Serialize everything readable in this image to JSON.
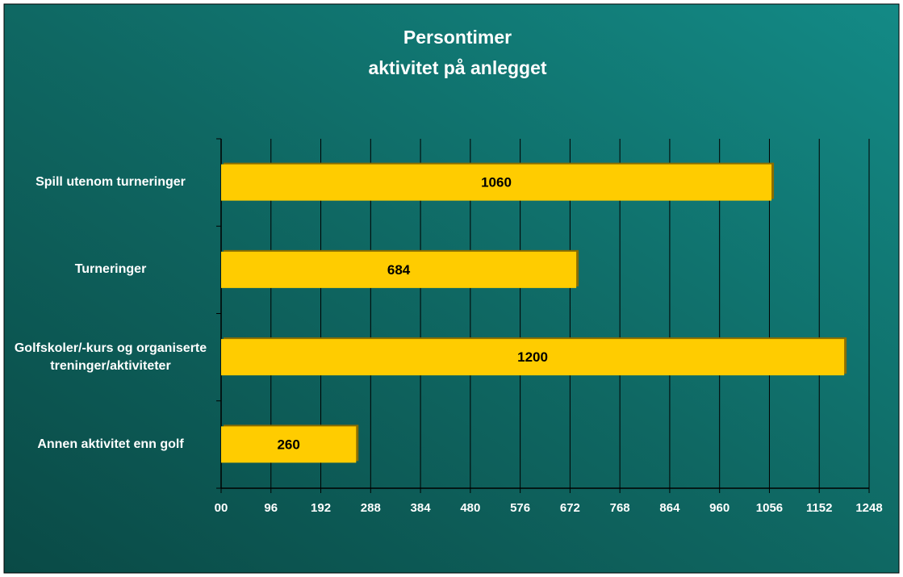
{
  "chart_data": {
    "type": "bar",
    "orientation": "horizontal",
    "title": "Persontimer",
    "subtitle": "aktivitet på anlegget",
    "categories": [
      "Spill utenom turneringer",
      "Turneringer",
      "Golfskoler/-kurs og organiserte treninger/aktiviteter",
      "Annen aktivitet enn golf"
    ],
    "values": [
      1060,
      684,
      1200,
      260
    ],
    "color": "#ffcc00",
    "xlim": [
      0,
      1248
    ],
    "xticks": [
      {
        "value": 0,
        "label": "00"
      },
      96,
      192,
      288,
      384,
      480,
      576,
      672,
      768,
      864,
      960,
      1056,
      1152,
      1248
    ],
    "grid": true
  }
}
